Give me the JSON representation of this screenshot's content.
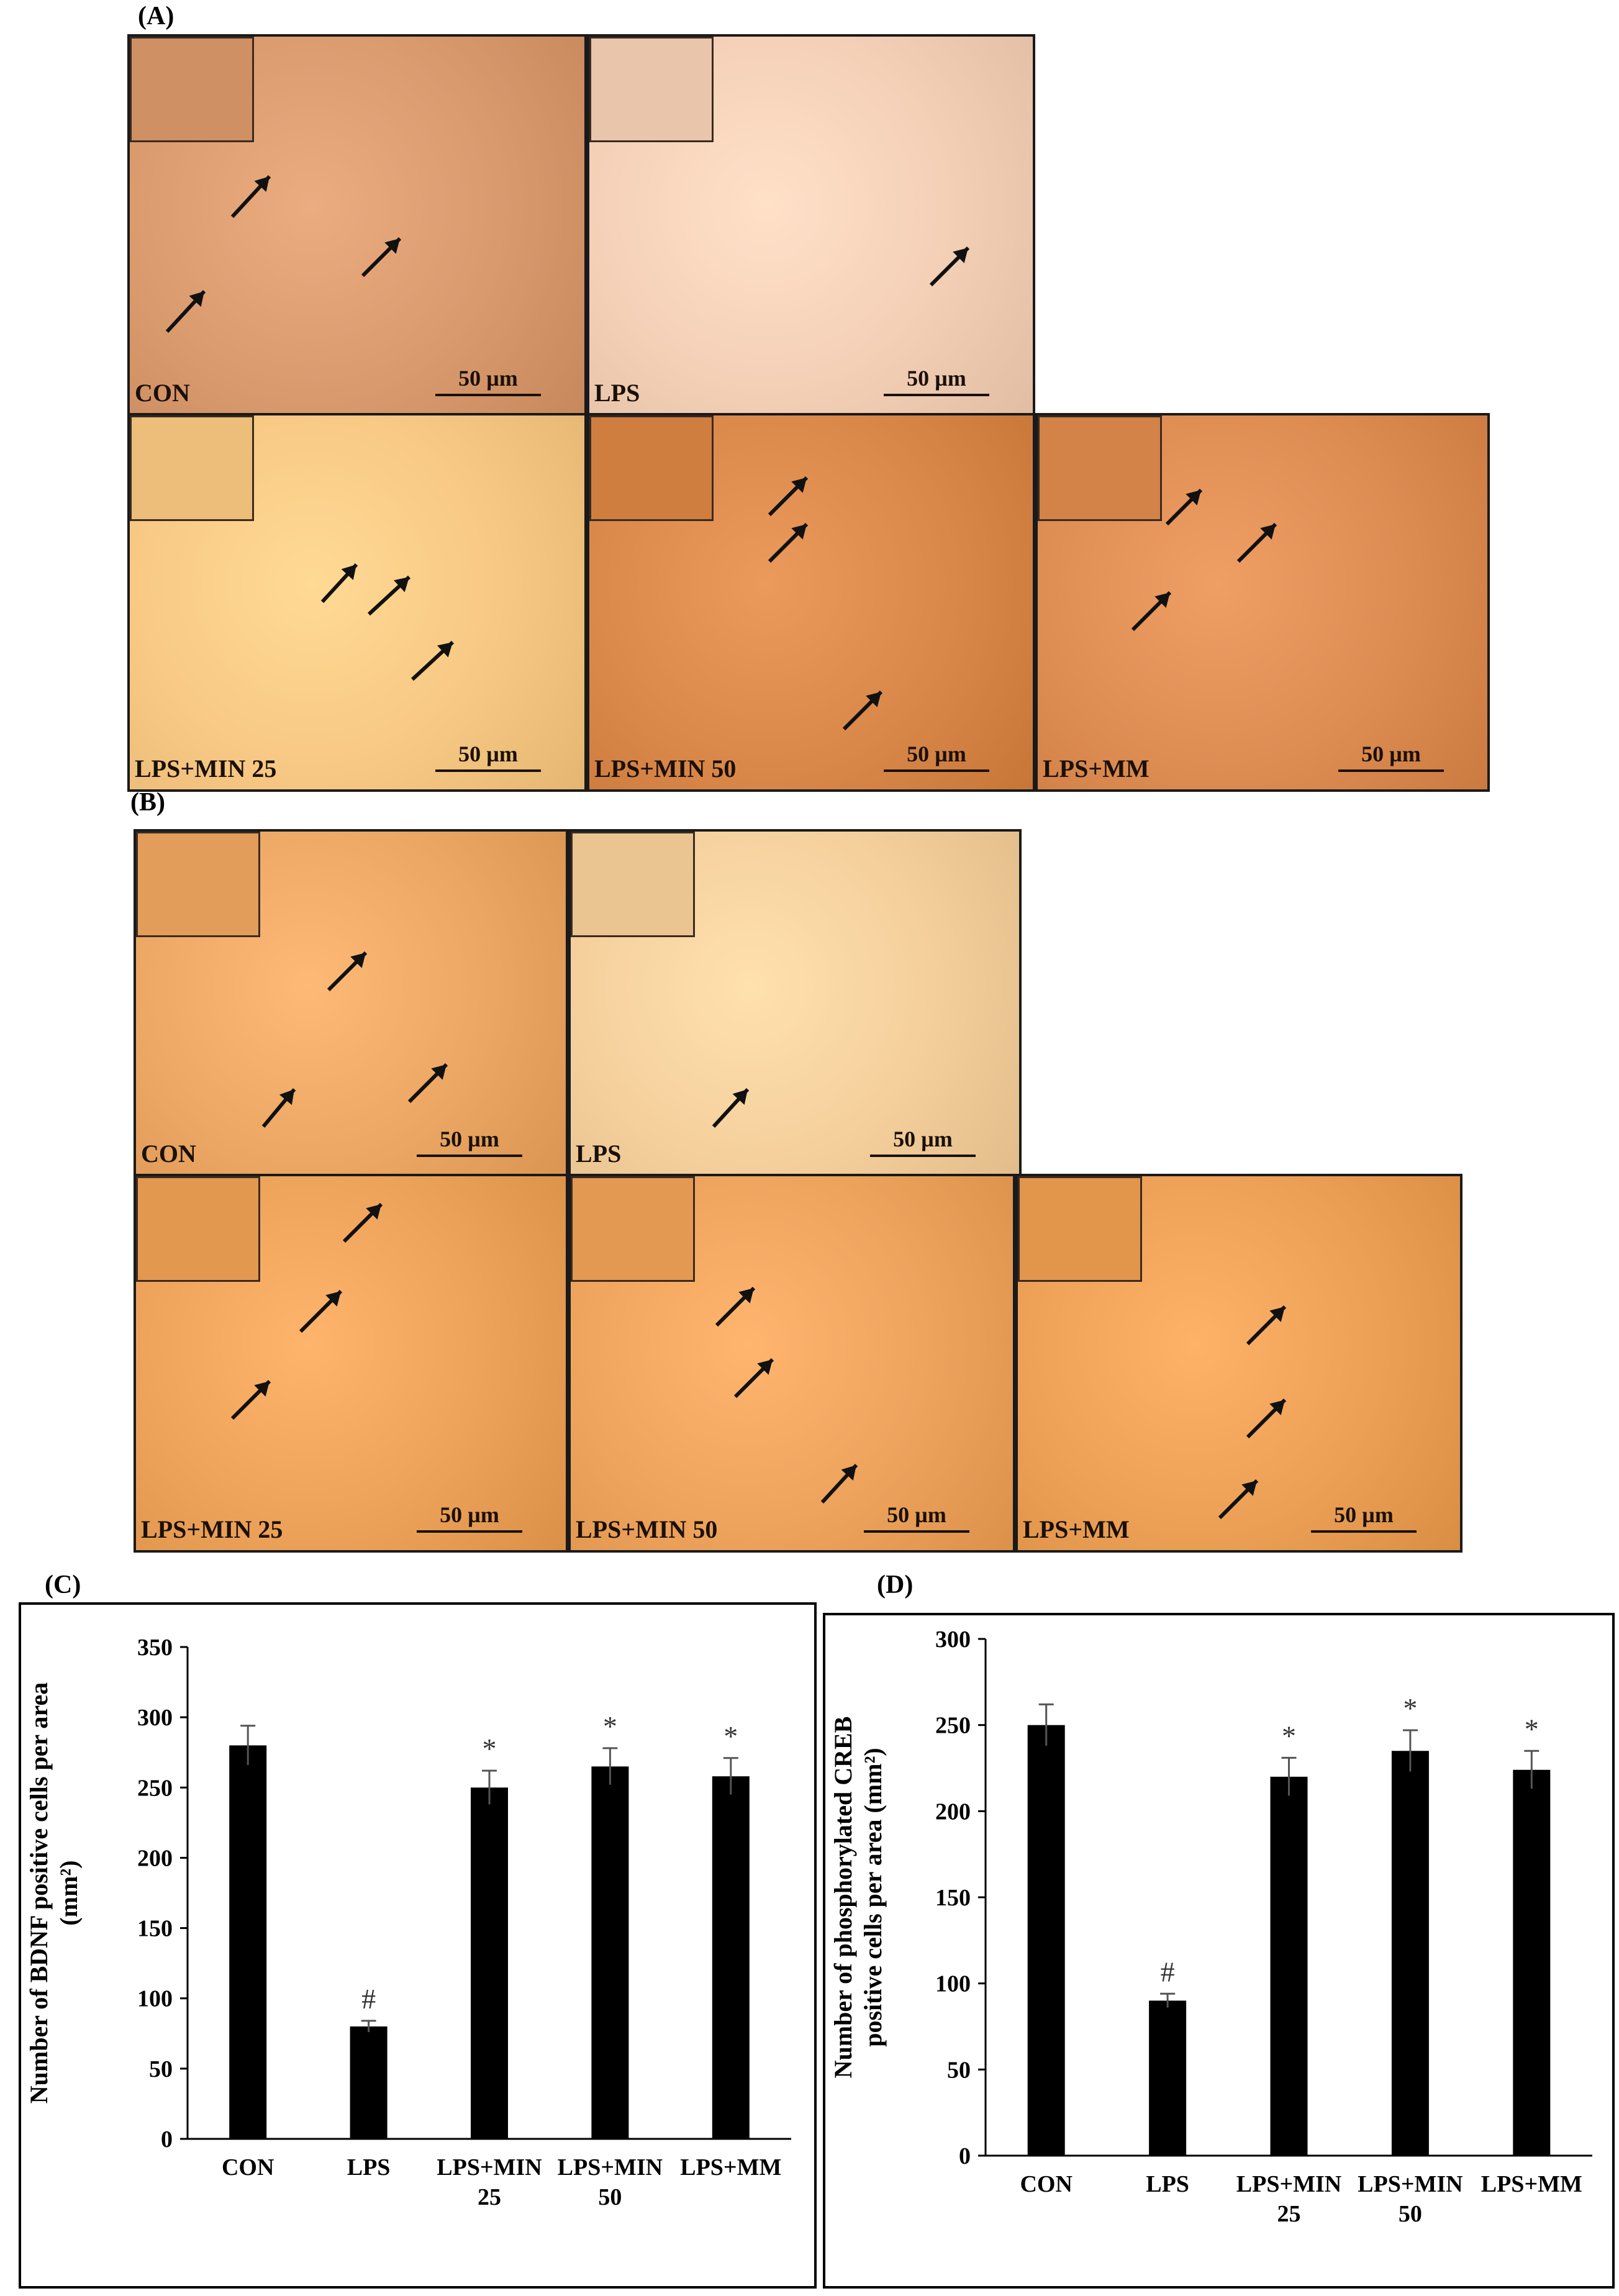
{
  "panels": {
    "a": {
      "letter": "(A)"
    },
    "b": {
      "letter": "(B)"
    },
    "c": {
      "letter": "(C)"
    },
    "d": {
      "letter": "(D)"
    }
  },
  "micrographs": {
    "a": [
      {
        "label": "CON",
        "scale": "50 µm",
        "tint": "#d99a6e"
      },
      {
        "label": "LPS",
        "scale": "50 µm",
        "tint": "#f3cfb6"
      },
      {
        "label": "LPS+MIN 25",
        "scale": "50 µm",
        "tint": "#f7c883"
      },
      {
        "label": "LPS+MIN 50",
        "scale": "50 µm",
        "tint": "#d9884a"
      },
      {
        "label": "LPS+MM",
        "scale": "50 µm",
        "tint": "#dd8c52"
      }
    ],
    "b": [
      {
        "label": "CON",
        "scale": "50 µm",
        "tint": "#eba763"
      },
      {
        "label": "LPS",
        "scale": "50 µm",
        "tint": "#f4cf9c"
      },
      {
        "label": "LPS+MIN 25",
        "scale": "50 µm",
        "tint": "#eda25a"
      },
      {
        "label": "LPS+MIN 50",
        "scale": "50 µm",
        "tint": "#eda35c"
      },
      {
        "label": "LPS+MM",
        "scale": "50 µm",
        "tint": "#eba056"
      }
    ]
  },
  "chart_data": [
    {
      "type": "bar",
      "panel": "(C)",
      "categories": [
        "CON",
        "LPS",
        "LPS+MIN 25",
        "LPS+MIN 50",
        "LPS+MM"
      ],
      "category_lines": [
        [
          "CON"
        ],
        [
          "LPS"
        ],
        [
          "LPS+MIN",
          "25"
        ],
        [
          "LPS+MIN",
          "50"
        ],
        [
          "LPS+MM"
        ]
      ],
      "values": [
        280,
        80,
        250,
        265,
        258
      ],
      "errors": [
        14,
        4,
        12,
        13,
        13
      ],
      "markers": [
        "",
        "#",
        "*",
        "*",
        "*"
      ],
      "ylabel_lines": [
        "Number of BDNF positive cells per area",
        "(mm²)"
      ],
      "ylim": [
        0,
        350
      ],
      "yticks": [
        0,
        50,
        100,
        150,
        200,
        250,
        300,
        350
      ],
      "bar_color": "#000000",
      "grid": false
    },
    {
      "type": "bar",
      "panel": "(D)",
      "categories": [
        "CON",
        "LPS",
        "LPS+MIN 25",
        "LPS+MIN 50",
        "LPS+MM"
      ],
      "category_lines": [
        [
          "CON"
        ],
        [
          "LPS"
        ],
        [
          "LPS+MIN",
          "25"
        ],
        [
          "LPS+MIN",
          "50"
        ],
        [
          "LPS+MM"
        ]
      ],
      "values": [
        250,
        90,
        220,
        235,
        224
      ],
      "errors": [
        12,
        4,
        11,
        12,
        11
      ],
      "markers": [
        "",
        "#",
        "*",
        "*",
        "*"
      ],
      "ylabel_lines": [
        "Number of phosphorylated CREB",
        "positive cells per area (mm²)"
      ],
      "ylim": [
        0,
        300
      ],
      "yticks": [
        0,
        50,
        100,
        150,
        200,
        250,
        300
      ],
      "bar_color": "#000000",
      "grid": false
    }
  ]
}
